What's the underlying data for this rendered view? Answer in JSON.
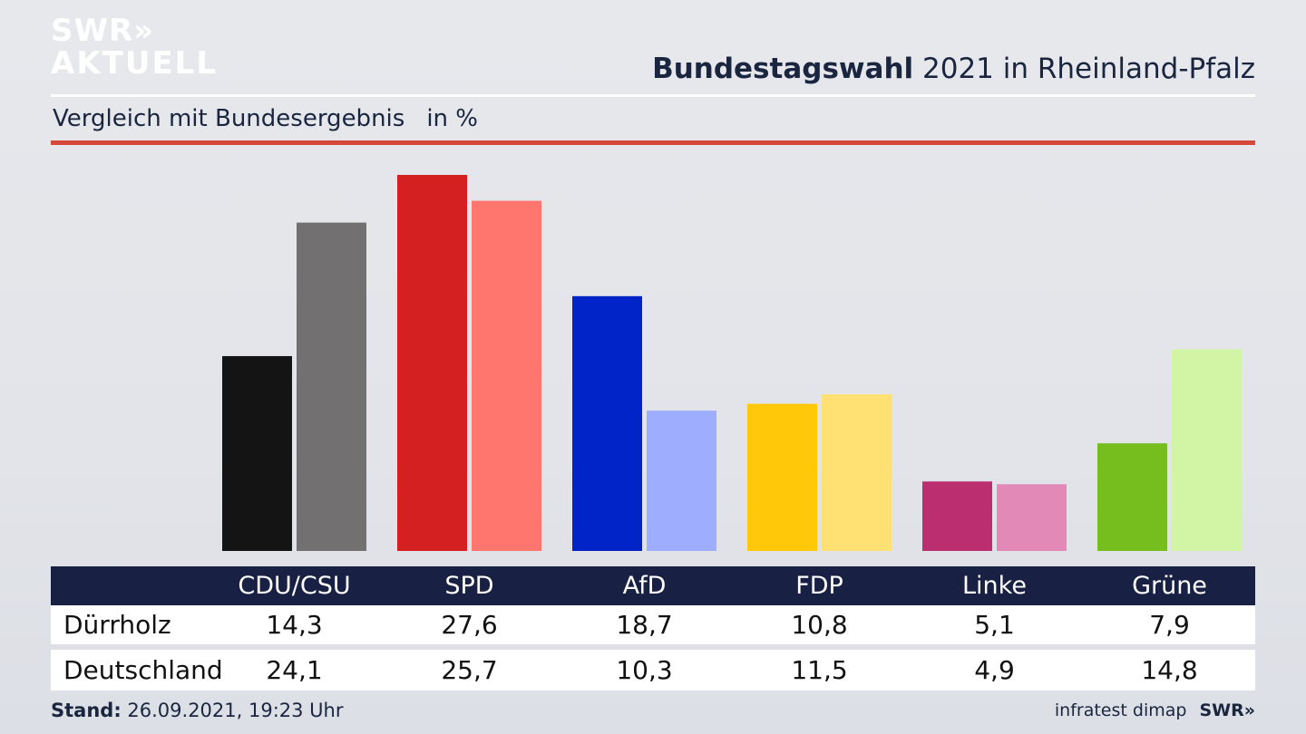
{
  "brand": {
    "line1": "SWR",
    "line2": "AKTUELL",
    "arrows": "»"
  },
  "header": {
    "title_bold": "Bundestagswahl",
    "title_rest": " 2021 in Rheinland-Pfalz"
  },
  "subtitle": {
    "text": "Vergleich mit Bundesergebnis",
    "unit": "in %"
  },
  "colors": {
    "dark_series": [
      "#141414",
      "#d42020",
      "#0024c8",
      "#ffc90a",
      "#bb2e70",
      "#76bd1e"
    ],
    "light_series": [
      "#727070",
      "#ff766f",
      "#9fadff",
      "#ffe072",
      "#e289b8",
      "#d2f5a5"
    ],
    "table_header_bg": "#182043",
    "accent_red": "#d4493b"
  },
  "chart_data": {
    "type": "bar",
    "categories": [
      "CDU/CSU",
      "SPD",
      "AfD",
      "FDP",
      "Linke",
      "Grüne"
    ],
    "series": [
      {
        "name": "Dürrholz",
        "values": [
          14.3,
          27.6,
          18.7,
          10.8,
          5.1,
          7.9
        ]
      },
      {
        "name": "Deutschland",
        "values": [
          24.1,
          25.7,
          10.3,
          11.5,
          4.9,
          14.8
        ]
      }
    ],
    "ylim": [
      0,
      28
    ]
  },
  "table": {
    "columns": [
      "CDU/CSU",
      "SPD",
      "AfD",
      "FDP",
      "Linke",
      "Grüne"
    ],
    "rows": [
      {
        "label": "Dürrholz",
        "values": [
          "14,3",
          "27,6",
          "18,7",
          "10,8",
          "5,1",
          "7,9"
        ]
      },
      {
        "label": "Deutschland",
        "values": [
          "24,1",
          "25,7",
          "10,3",
          "11,5",
          "4,9",
          "14,8"
        ]
      }
    ]
  },
  "footer": {
    "stand_label": "Stand:",
    "stand_value": " 26.09.2021, 19:23 Uhr",
    "source": "infratest dimap",
    "brand": "SWR"
  }
}
